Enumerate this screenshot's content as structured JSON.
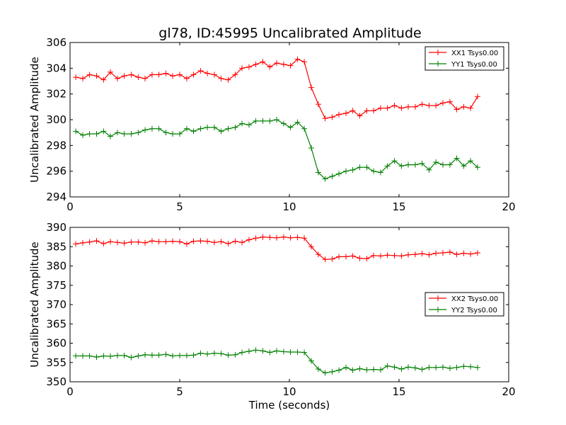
{
  "title": "gl78, ID:45995 Uncalibrated Amplitude",
  "chart_data": [
    {
      "type": "line",
      "title": "gl78, ID:45995 Uncalibrated Amplitude",
      "xlabel": "",
      "ylabel": "Uncalibrated Amplitude",
      "xlim": [
        0,
        20
      ],
      "ylim": [
        294,
        306
      ],
      "xticks": [
        0,
        5,
        10,
        15,
        20
      ],
      "yticks": [
        294,
        296,
        298,
        300,
        302,
        304,
        306
      ],
      "grid": false,
      "legend": "top-right",
      "x": [
        0.26,
        0.58,
        0.89,
        1.21,
        1.53,
        1.84,
        2.16,
        2.47,
        2.79,
        3.11,
        3.42,
        3.74,
        4.05,
        4.37,
        4.68,
        5.0,
        5.32,
        5.63,
        5.95,
        6.26,
        6.58,
        6.89,
        7.21,
        7.53,
        7.84,
        8.16,
        8.47,
        8.79,
        9.11,
        9.42,
        9.74,
        10.05,
        10.37,
        10.68,
        11.0,
        11.32,
        11.63,
        11.95,
        12.26,
        12.58,
        12.89,
        13.21,
        13.53,
        13.84,
        14.16,
        14.47,
        14.79,
        15.11,
        15.42,
        15.74,
        16.05,
        16.37,
        16.68,
        17.0,
        17.32,
        17.63,
        17.95,
        18.26,
        18.58
      ],
      "series": [
        {
          "name": "XX1 Tsys0.00",
          "color": "#ff0000",
          "values": [
            303.3,
            303.2,
            303.5,
            303.4,
            303.1,
            303.7,
            303.2,
            303.4,
            303.5,
            303.3,
            303.2,
            303.5,
            303.5,
            303.6,
            303.4,
            303.5,
            303.2,
            303.5,
            303.8,
            303.6,
            303.5,
            303.2,
            303.1,
            303.5,
            304.0,
            304.1,
            304.3,
            304.5,
            304.1,
            304.4,
            304.3,
            304.2,
            304.7,
            304.5,
            302.5,
            301.2,
            300.1,
            300.2,
            300.4,
            300.5,
            300.7,
            300.3,
            300.7,
            300.7,
            300.9,
            300.9,
            301.1,
            300.9,
            301.0,
            301.0,
            301.2,
            301.1,
            301.1,
            301.3,
            301.4,
            300.8,
            301.0,
            300.9,
            301.8
          ]
        },
        {
          "name": "YY1 Tsys0.00",
          "color": "#008000",
          "values": [
            299.1,
            298.8,
            298.9,
            298.9,
            299.1,
            298.7,
            299.0,
            298.9,
            298.9,
            299.0,
            299.2,
            299.3,
            299.3,
            299.0,
            298.9,
            298.9,
            299.3,
            299.1,
            299.3,
            299.4,
            299.4,
            299.1,
            299.3,
            299.4,
            299.7,
            299.6,
            299.9,
            299.9,
            299.9,
            300.0,
            299.7,
            299.4,
            299.8,
            299.3,
            297.8,
            295.9,
            295.4,
            295.6,
            295.8,
            296.0,
            296.1,
            296.3,
            296.3,
            296.0,
            295.9,
            296.4,
            296.8,
            296.4,
            296.5,
            296.5,
            296.6,
            296.1,
            296.7,
            296.5,
            296.5,
            297.0,
            296.4,
            296.8,
            296.3
          ]
        }
      ]
    },
    {
      "type": "line",
      "title": "",
      "xlabel": "Time (seconds)",
      "ylabel": "Uncalibrated Amplitude",
      "xlim": [
        0,
        20
      ],
      "ylim": [
        350,
        390
      ],
      "xticks": [
        0,
        5,
        10,
        15,
        20
      ],
      "yticks": [
        350,
        355,
        360,
        365,
        370,
        375,
        380,
        385,
        390
      ],
      "grid": false,
      "legend": "center-right",
      "x": [
        0.26,
        0.58,
        0.89,
        1.21,
        1.53,
        1.84,
        2.16,
        2.47,
        2.79,
        3.11,
        3.42,
        3.74,
        4.05,
        4.37,
        4.68,
        5.0,
        5.32,
        5.63,
        5.95,
        6.26,
        6.58,
        6.89,
        7.21,
        7.53,
        7.84,
        8.16,
        8.47,
        8.79,
        9.11,
        9.42,
        9.74,
        10.05,
        10.37,
        10.68,
        11.0,
        11.32,
        11.63,
        11.95,
        12.26,
        12.58,
        12.89,
        13.21,
        13.53,
        13.84,
        14.16,
        14.47,
        14.79,
        15.11,
        15.42,
        15.74,
        16.05,
        16.37,
        16.68,
        17.0,
        17.32,
        17.63,
        17.95,
        18.26,
        18.58
      ],
      "series": [
        {
          "name": "XX2 Tsys0.00",
          "color": "#ff0000",
          "values": [
            385.7,
            386.0,
            386.2,
            386.5,
            385.8,
            386.3,
            386.1,
            385.9,
            386.2,
            386.2,
            386.0,
            386.5,
            386.3,
            386.3,
            386.4,
            386.3,
            385.7,
            386.4,
            386.5,
            386.4,
            386.1,
            386.3,
            385.8,
            386.4,
            386.1,
            386.8,
            387.2,
            387.5,
            387.4,
            387.3,
            387.5,
            387.3,
            387.4,
            387.2,
            385.0,
            383.0,
            381.7,
            381.8,
            382.4,
            382.4,
            382.6,
            382.0,
            381.9,
            382.7,
            382.6,
            382.8,
            382.7,
            382.6,
            382.9,
            383.0,
            383.2,
            382.9,
            383.3,
            383.4,
            383.6,
            383.0,
            383.3,
            383.1,
            383.4
          ]
        },
        {
          "name": "YY2 Tsys0.00",
          "color": "#008000",
          "values": [
            356.7,
            356.7,
            356.7,
            356.4,
            356.7,
            356.6,
            356.8,
            356.8,
            356.3,
            356.7,
            357.0,
            356.9,
            356.9,
            357.1,
            356.7,
            356.8,
            356.8,
            356.9,
            357.4,
            357.2,
            357.4,
            357.3,
            356.9,
            357.0,
            357.6,
            357.9,
            358.2,
            358.0,
            357.6,
            358.0,
            357.8,
            357.7,
            357.7,
            357.6,
            355.4,
            353.3,
            352.3,
            352.6,
            353.0,
            353.7,
            353.0,
            353.4,
            353.1,
            353.2,
            353.1,
            354.1,
            353.8,
            353.3,
            353.8,
            353.6,
            353.2,
            353.7,
            353.7,
            353.8,
            353.5,
            353.7,
            354.0,
            353.9,
            353.7
          ]
        }
      ]
    }
  ]
}
